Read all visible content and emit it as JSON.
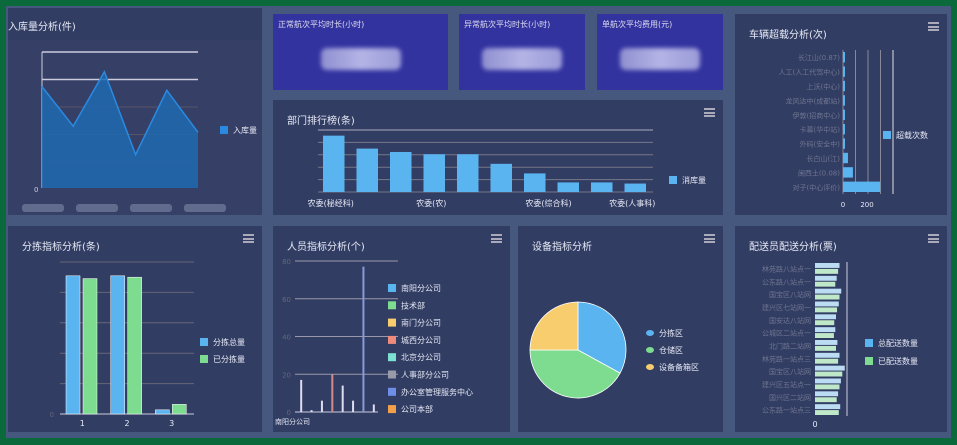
{
  "colors": {
    "frame": "#0b6a3b",
    "panel": "#323d63",
    "kpi": "#3333a0",
    "blue": "#5ab4f0",
    "green": "#7ddc8f",
    "yellow": "#f8cd6e",
    "area": "#1e6ab0"
  },
  "kpis": [
    {
      "title": "正常航次平均时长(小时)"
    },
    {
      "title": "异常航次平均时长(小时)"
    },
    {
      "title": "单航次平均费用(元)"
    }
  ],
  "panels": {
    "inbound": {
      "title": "入库量分析(件)"
    },
    "ranking": {
      "title": "部门排行榜(条)"
    },
    "overload": {
      "title": "车辆超载分析(次)"
    },
    "sorting": {
      "title": "分拣指标分析(条)"
    },
    "staff": {
      "title": "人员指标分析(个)"
    },
    "device": {
      "title": "设备指标分析"
    },
    "delivery": {
      "title": "配送员配送分析(票)"
    }
  },
  "chart_data": [
    {
      "id": "inbound",
      "type": "area",
      "series": [
        {
          "name": "入库量",
          "values": [
            82,
            50,
            94,
            27,
            79,
            45
          ]
        }
      ],
      "ylim": [
        0,
        110
      ],
      "x_tick_labels_visible": false,
      "y_tick_labels_visible": false,
      "yticks": [
        "0"
      ],
      "legend": "right"
    },
    {
      "id": "ranking",
      "type": "bar",
      "categories": [
        "农委(秘经科)",
        "",
        "农委(农)",
        "",
        "",
        "农委(综合科)",
        "",
        "",
        "农委(人事科)",
        ""
      ],
      "x_tick_labels": [
        "农委(秘经科)",
        "农委(农)",
        "农委(综合科)",
        "农委(人事科)"
      ],
      "series": [
        {
          "name": "消库量",
          "values": [
            100,
            77,
            71,
            67,
            67,
            50,
            33,
            17,
            17,
            15
          ]
        }
      ],
      "ylim": [
        0,
        110
      ],
      "legend": "right"
    },
    {
      "id": "overload",
      "type": "hbar",
      "categories": [
        "长江山(0.87)",
        "人工(人工代驾中心)",
        "上沃(中心)",
        "龙风达中(成都站)",
        "伊敦(招商中心)",
        "卡幕(华中站)",
        "外码(安全中)",
        "长白山(江)",
        "闽西土(0.08)",
        "对子(中心评价)"
      ],
      "series": [
        {
          "name": "超载次数",
          "values": [
            5,
            5,
            5,
            5,
            5,
            5,
            5,
            20,
            40,
            150
          ]
        }
      ],
      "xlim": [
        0,
        250
      ],
      "xticks": [
        "0",
        "200"
      ],
      "legend": "right"
    },
    {
      "id": "sorting",
      "type": "bar",
      "categories": [
        "1",
        "2",
        "3"
      ],
      "series": [
        {
          "name": "分拣总量",
          "values": [
            100,
            100,
            3
          ]
        },
        {
          "name": "已分拣量",
          "values": [
            98,
            99,
            7
          ]
        }
      ],
      "ylim": [
        0,
        110
      ],
      "legend": "right"
    },
    {
      "id": "staff",
      "type": "bar",
      "categories": [
        "南阳分公司",
        "技术部",
        "南门分公司",
        "城西分公司",
        "北京分公司",
        "人事部分公司",
        "办公室管理服务中心",
        "公司本部"
      ],
      "x_tick_labels": [
        "南阳分公司"
      ],
      "series": [
        {
          "values": [
            17,
            1,
            6,
            20,
            14,
            6,
            77,
            4
          ]
        }
      ],
      "ylim": [
        0,
        80
      ],
      "yticks": [
        "0",
        "20",
        "40",
        "60",
        "80"
      ],
      "legend": "right"
    },
    {
      "id": "device",
      "type": "pie",
      "slices": [
        {
          "name": "分拣区",
          "value": 33
        },
        {
          "name": "仓储区",
          "value": 42
        },
        {
          "name": "设备备箱区",
          "value": 25
        }
      ],
      "legend": "right"
    },
    {
      "id": "delivery",
      "type": "hbar",
      "categories": [
        "林苑路八站点一",
        "公东路八站点一",
        "国宝区八站网",
        "建兴区七站网一",
        "国安达八站网",
        "公城区二站点一",
        "北门路二站网",
        "林苑路一站点三",
        "国宝区八站网",
        "建兴区五站点一",
        "国兴区二站网",
        "公东路一站点三"
      ],
      "series": [
        {
          "name": "总配送数量",
          "values": [
            70,
            62,
            75,
            68,
            60,
            58,
            64,
            70,
            85,
            74,
            66,
            72
          ]
        },
        {
          "name": "已配送数量",
          "values": [
            66,
            58,
            70,
            63,
            55,
            54,
            60,
            66,
            78,
            70,
            62,
            68
          ]
        }
      ],
      "xticks": [
        "0"
      ],
      "legend": "right"
    }
  ]
}
